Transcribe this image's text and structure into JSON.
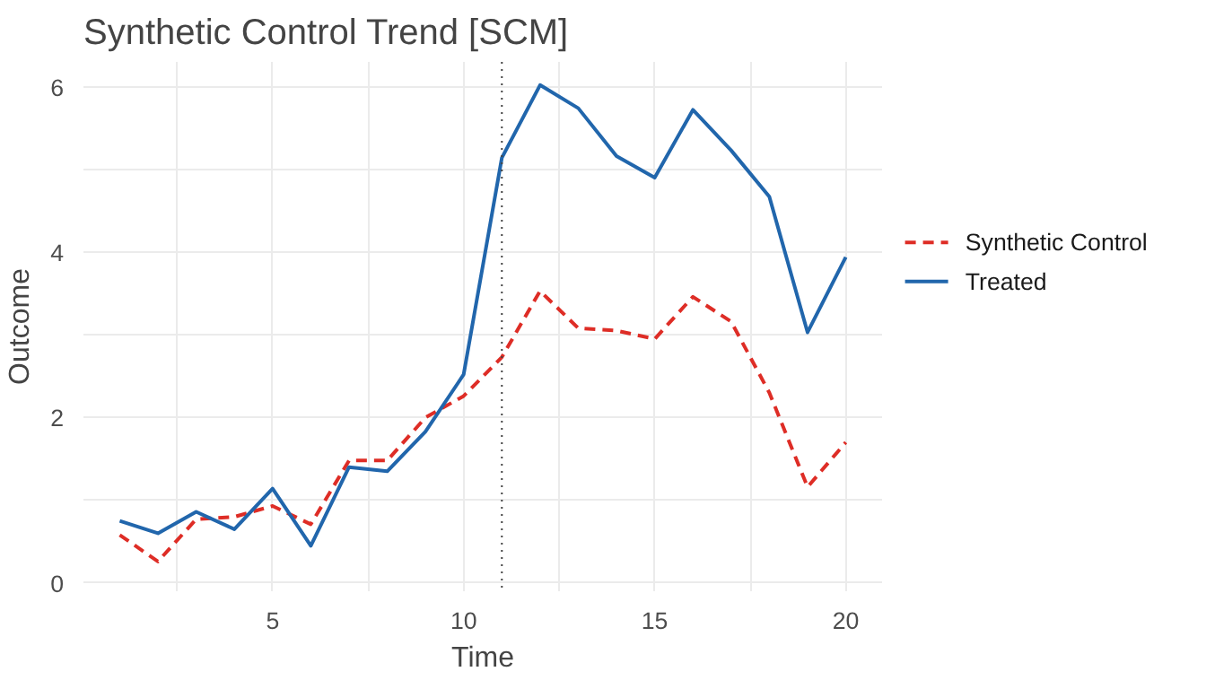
{
  "chart_data": {
    "type": "line",
    "title": "Synthetic Control Trend  [SCM]",
    "xlabel": "Time",
    "ylabel": "Outcome",
    "x": [
      1,
      2,
      3,
      4,
      5,
      6,
      7,
      8,
      9,
      10,
      11,
      12,
      13,
      14,
      15,
      16,
      17,
      18,
      19,
      20
    ],
    "series": [
      {
        "name": "Synthetic Control",
        "color": "#de2d26",
        "line_style": "dashed",
        "values": [
          0.58,
          0.26,
          0.77,
          0.8,
          0.93,
          0.71,
          1.48,
          1.48,
          2.0,
          2.26,
          2.73,
          3.53,
          3.08,
          3.05,
          2.95,
          3.46,
          3.16,
          2.3,
          1.16,
          1.7
        ]
      },
      {
        "name": "Treated",
        "color": "#2166ac",
        "line_style": "solid",
        "values": [
          0.75,
          0.6,
          0.86,
          0.65,
          1.14,
          0.45,
          1.4,
          1.35,
          1.83,
          2.52,
          5.14,
          6.02,
          5.74,
          5.16,
          4.9,
          5.72,
          5.23,
          4.67,
          3.03,
          3.94
        ]
      }
    ],
    "xlim": [
      0.05,
      20.95
    ],
    "ylim": [
      -0.1,
      6.3
    ],
    "xticks": [
      {
        "value": 2.5,
        "label": null
      },
      5,
      {
        "value": 7.5,
        "label": null
      },
      10,
      {
        "value": 12.5,
        "label": null
      },
      15,
      {
        "value": 17.5,
        "label": null
      },
      20
    ],
    "yticks": [
      0,
      {
        "value": 1,
        "label": null
      },
      2,
      {
        "value": 3,
        "label": null
      },
      4,
      {
        "value": 5,
        "label": null
      },
      6
    ],
    "ref_lines": [
      {
        "axis": "x",
        "value": 11,
        "label": null,
        "color": "#444444",
        "line_style": "dotted"
      }
    ],
    "grid": true,
    "legend": "right"
  }
}
